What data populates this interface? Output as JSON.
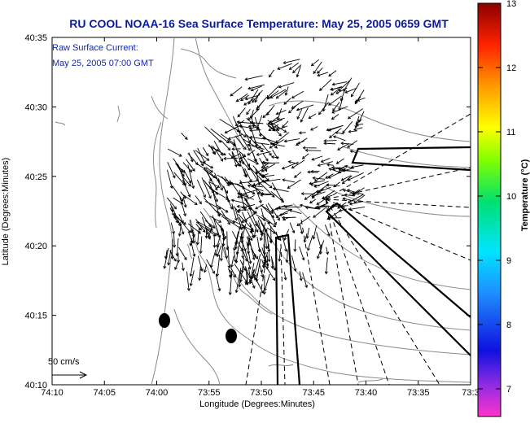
{
  "title": "RU COOL  NOAA-16  Sea Surface Temperature:  May 25, 2005 0659 GMT",
  "legend": {
    "line1": "Raw Surface Current:",
    "line2": "May 25, 2005 07:00 GMT"
  },
  "scale_label": "50 cm/s",
  "axes": {
    "xlabel": "Longitude (Degrees:Minutes)",
    "ylabel": "Latitude (Degrees:Minutes)",
    "x_ticks": [
      "74:10",
      "74:05",
      "74:00",
      "73:55",
      "73:50",
      "73:45",
      "73:40",
      "73:35",
      "73:3"
    ],
    "y_ticks": [
      "40:35",
      "40:30",
      "40:25",
      "40:20",
      "40:15",
      "40:10"
    ]
  },
  "colorbar": {
    "label": "Temperature (°C)",
    "ticks": [
      "13",
      "12",
      "11",
      "10",
      "9",
      "8",
      "7"
    ]
  },
  "colors": {
    "title": "#0a1aa0",
    "legend_text": "#1428a8",
    "land_line": "#808080"
  }
}
